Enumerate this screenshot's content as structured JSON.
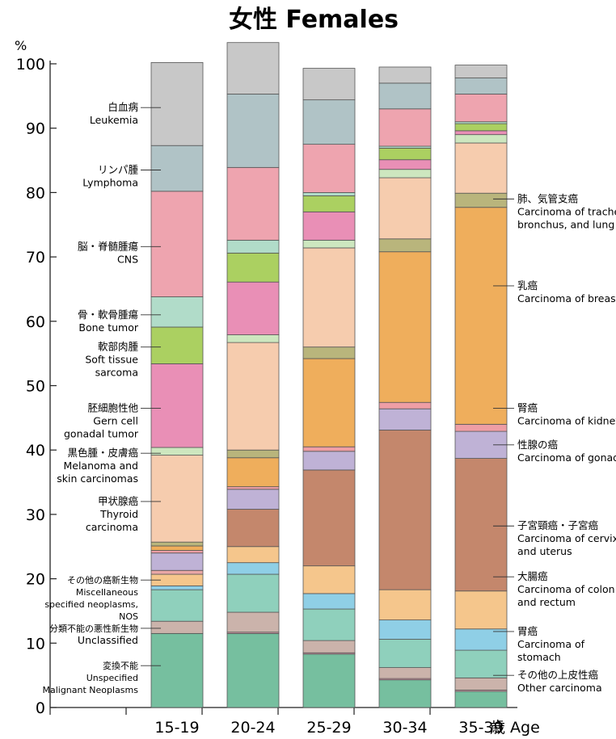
{
  "chart_data": {
    "type": "bar",
    "stacked": true,
    "title": "女性 Females",
    "ylabel": "%",
    "xlabel_suffix": "歳 Age",
    "ylim": [
      0,
      100
    ],
    "yticks": [
      "0",
      "10",
      "20",
      "30",
      "40",
      "50",
      "60",
      "70",
      "80",
      "90",
      "100"
    ],
    "categories": [
      "15-19",
      "20-24",
      "25-29",
      "30-34",
      "35-39"
    ],
    "series": [
      {
        "key": "unspecified",
        "color": "#76bf9f",
        "values": [
          11.5,
          11.5,
          8.3,
          4.3,
          2.5
        ]
      },
      {
        "key": "otherc_a",
        "color": "#e79fb0",
        "values": [
          0,
          0.2,
          0.2,
          0.2,
          0.2
        ]
      },
      {
        "key": "unclassified",
        "color": "#cbb3ab",
        "values": [
          1.9,
          3.1,
          1.9,
          1.7,
          1.9
        ]
      },
      {
        "key": "misc",
        "color": "#8fd0bc",
        "values": [
          4.9,
          5.9,
          4.9,
          4.4,
          4.3
        ]
      },
      {
        "key": "stomach",
        "color": "#8fcfe6",
        "values": [
          0.6,
          1.8,
          2.4,
          3.0,
          3.3
        ]
      },
      {
        "key": "colon",
        "color": "#f5c68c",
        "values": [
          1.8,
          2.5,
          4.3,
          4.7,
          5.9
        ]
      },
      {
        "key": "cervix_a",
        "color": "#e9a7a6",
        "values": [
          0.6,
          0,
          0,
          0,
          0
        ]
      },
      {
        "key": "cervix",
        "color": "#c4876c",
        "values": [
          0,
          5.8,
          14.9,
          24.8,
          20.6
        ]
      },
      {
        "key": "gonads",
        "color": "#bfb2d6",
        "values": [
          2.7,
          3.1,
          2.9,
          3.3,
          4.2
        ]
      },
      {
        "key": "kidney",
        "color": "#ee9ea5",
        "values": [
          0.4,
          0.4,
          0.7,
          1.0,
          1.1
        ]
      },
      {
        "key": "breast",
        "color": "#efae5c",
        "values": [
          0.7,
          4.5,
          13.7,
          23.4,
          33.7
        ]
      },
      {
        "key": "lung",
        "color": "#b9b57c",
        "values": [
          0.6,
          1.2,
          1.8,
          2.0,
          2.2
        ]
      },
      {
        "key": "thyroid",
        "color": "#f6ccae",
        "values": [
          13.5,
          16.7,
          15.4,
          9.5,
          7.8
        ]
      },
      {
        "key": "melanoma",
        "color": "#cde7bf",
        "values": [
          1.2,
          1.2,
          1.2,
          1.3,
          1.3
        ]
      },
      {
        "key": "germcell",
        "color": "#e98fb6",
        "values": [
          13.0,
          8.2,
          4.4,
          1.5,
          0.6
        ]
      },
      {
        "key": "soft",
        "color": "#abd061",
        "values": [
          5.7,
          4.5,
          2.5,
          1.8,
          1.1
        ]
      },
      {
        "key": "bone",
        "color": "#b1dcc9",
        "values": [
          4.7,
          2.0,
          0.5,
          0.3,
          0.3
        ]
      },
      {
        "key": "cns",
        "color": "#eea4af",
        "values": [
          16.4,
          11.3,
          7.5,
          5.8,
          4.3
        ]
      },
      {
        "key": "lymphoma",
        "color": "#b0c3c6",
        "values": [
          7.1,
          11.4,
          6.9,
          4.0,
          2.5
        ]
      },
      {
        "key": "leukemia",
        "color": "#c8c8c8",
        "values": [
          12.9,
          8.0,
          4.9,
          2.5,
          2.0
        ]
      }
    ],
    "left_labels": [
      {
        "ja": "白血病",
        "en": "Leukemia",
        "y": 93.2
      },
      {
        "ja": "リンパ腫",
        "en": "Lymphoma",
        "y": 83.5
      },
      {
        "ja": "脳・脊髄腫瘍",
        "en": "CNS",
        "y": 71.6
      },
      {
        "ja": "骨・軟骨腫瘍",
        "en": "Bone tumor",
        "y": 61.0
      },
      {
        "ja": "軟部肉腫",
        "en": "Soft tissue",
        "en2": "sarcoma",
        "y": 56.0
      },
      {
        "ja": "胚細胞性他",
        "en": "Gern cell",
        "en2": "gonadal tumor",
        "y": 46.5
      },
      {
        "ja": "黒色腫・皮膚癌",
        "en": "Melanoma and",
        "en2": "skin carcinomas",
        "y": 39.5
      },
      {
        "ja": "甲状腺癌",
        "en": "Thyroid",
        "en2": "carcinoma",
        "y": 32.0
      },
      {
        "ja": "その他の癌新生物",
        "en": "Miscellaneous",
        "en2": "specified neoplasms,",
        "en3": "NOS",
        "y": 19.8
      },
      {
        "ja": "分類不能の悪性新生物",
        "en": "Unclassified",
        "y": 12.3
      },
      {
        "ja": "変換不能",
        "en": "Unspecified",
        "en2": "Malignant Neoplasms",
        "y": 6.5
      }
    ],
    "right_labels": [
      {
        "ja": "肺、気管支癌",
        "en": "Carcinoma of trachea,",
        "en2": "bronchus, and lung",
        "y": 79.0
      },
      {
        "ja": "乳癌",
        "en": "Carcinoma of breast",
        "y": 65.5
      },
      {
        "ja": "腎癌",
        "en": "Carcinoma of kidney",
        "y": 46.5
      },
      {
        "ja": "性腺の癌",
        "en": "Carcinoma of gonads",
        "y": 40.8
      },
      {
        "ja": "子宮頸癌・子宮癌",
        "en": "Carcinoma of cervix",
        "en2": "and uterus",
        "y": 28.2
      },
      {
        "ja": "大腸癌",
        "en": "Carcinoma of colon",
        "en2": "and rectum",
        "y": 20.3
      },
      {
        "ja": "胃癌",
        "en": "Carcinoma of",
        "en2": "stomach",
        "y": 11.8
      },
      {
        "ja": "その他の上皮性癌",
        "en": "Other carcinoma",
        "y": 5.0
      }
    ]
  }
}
